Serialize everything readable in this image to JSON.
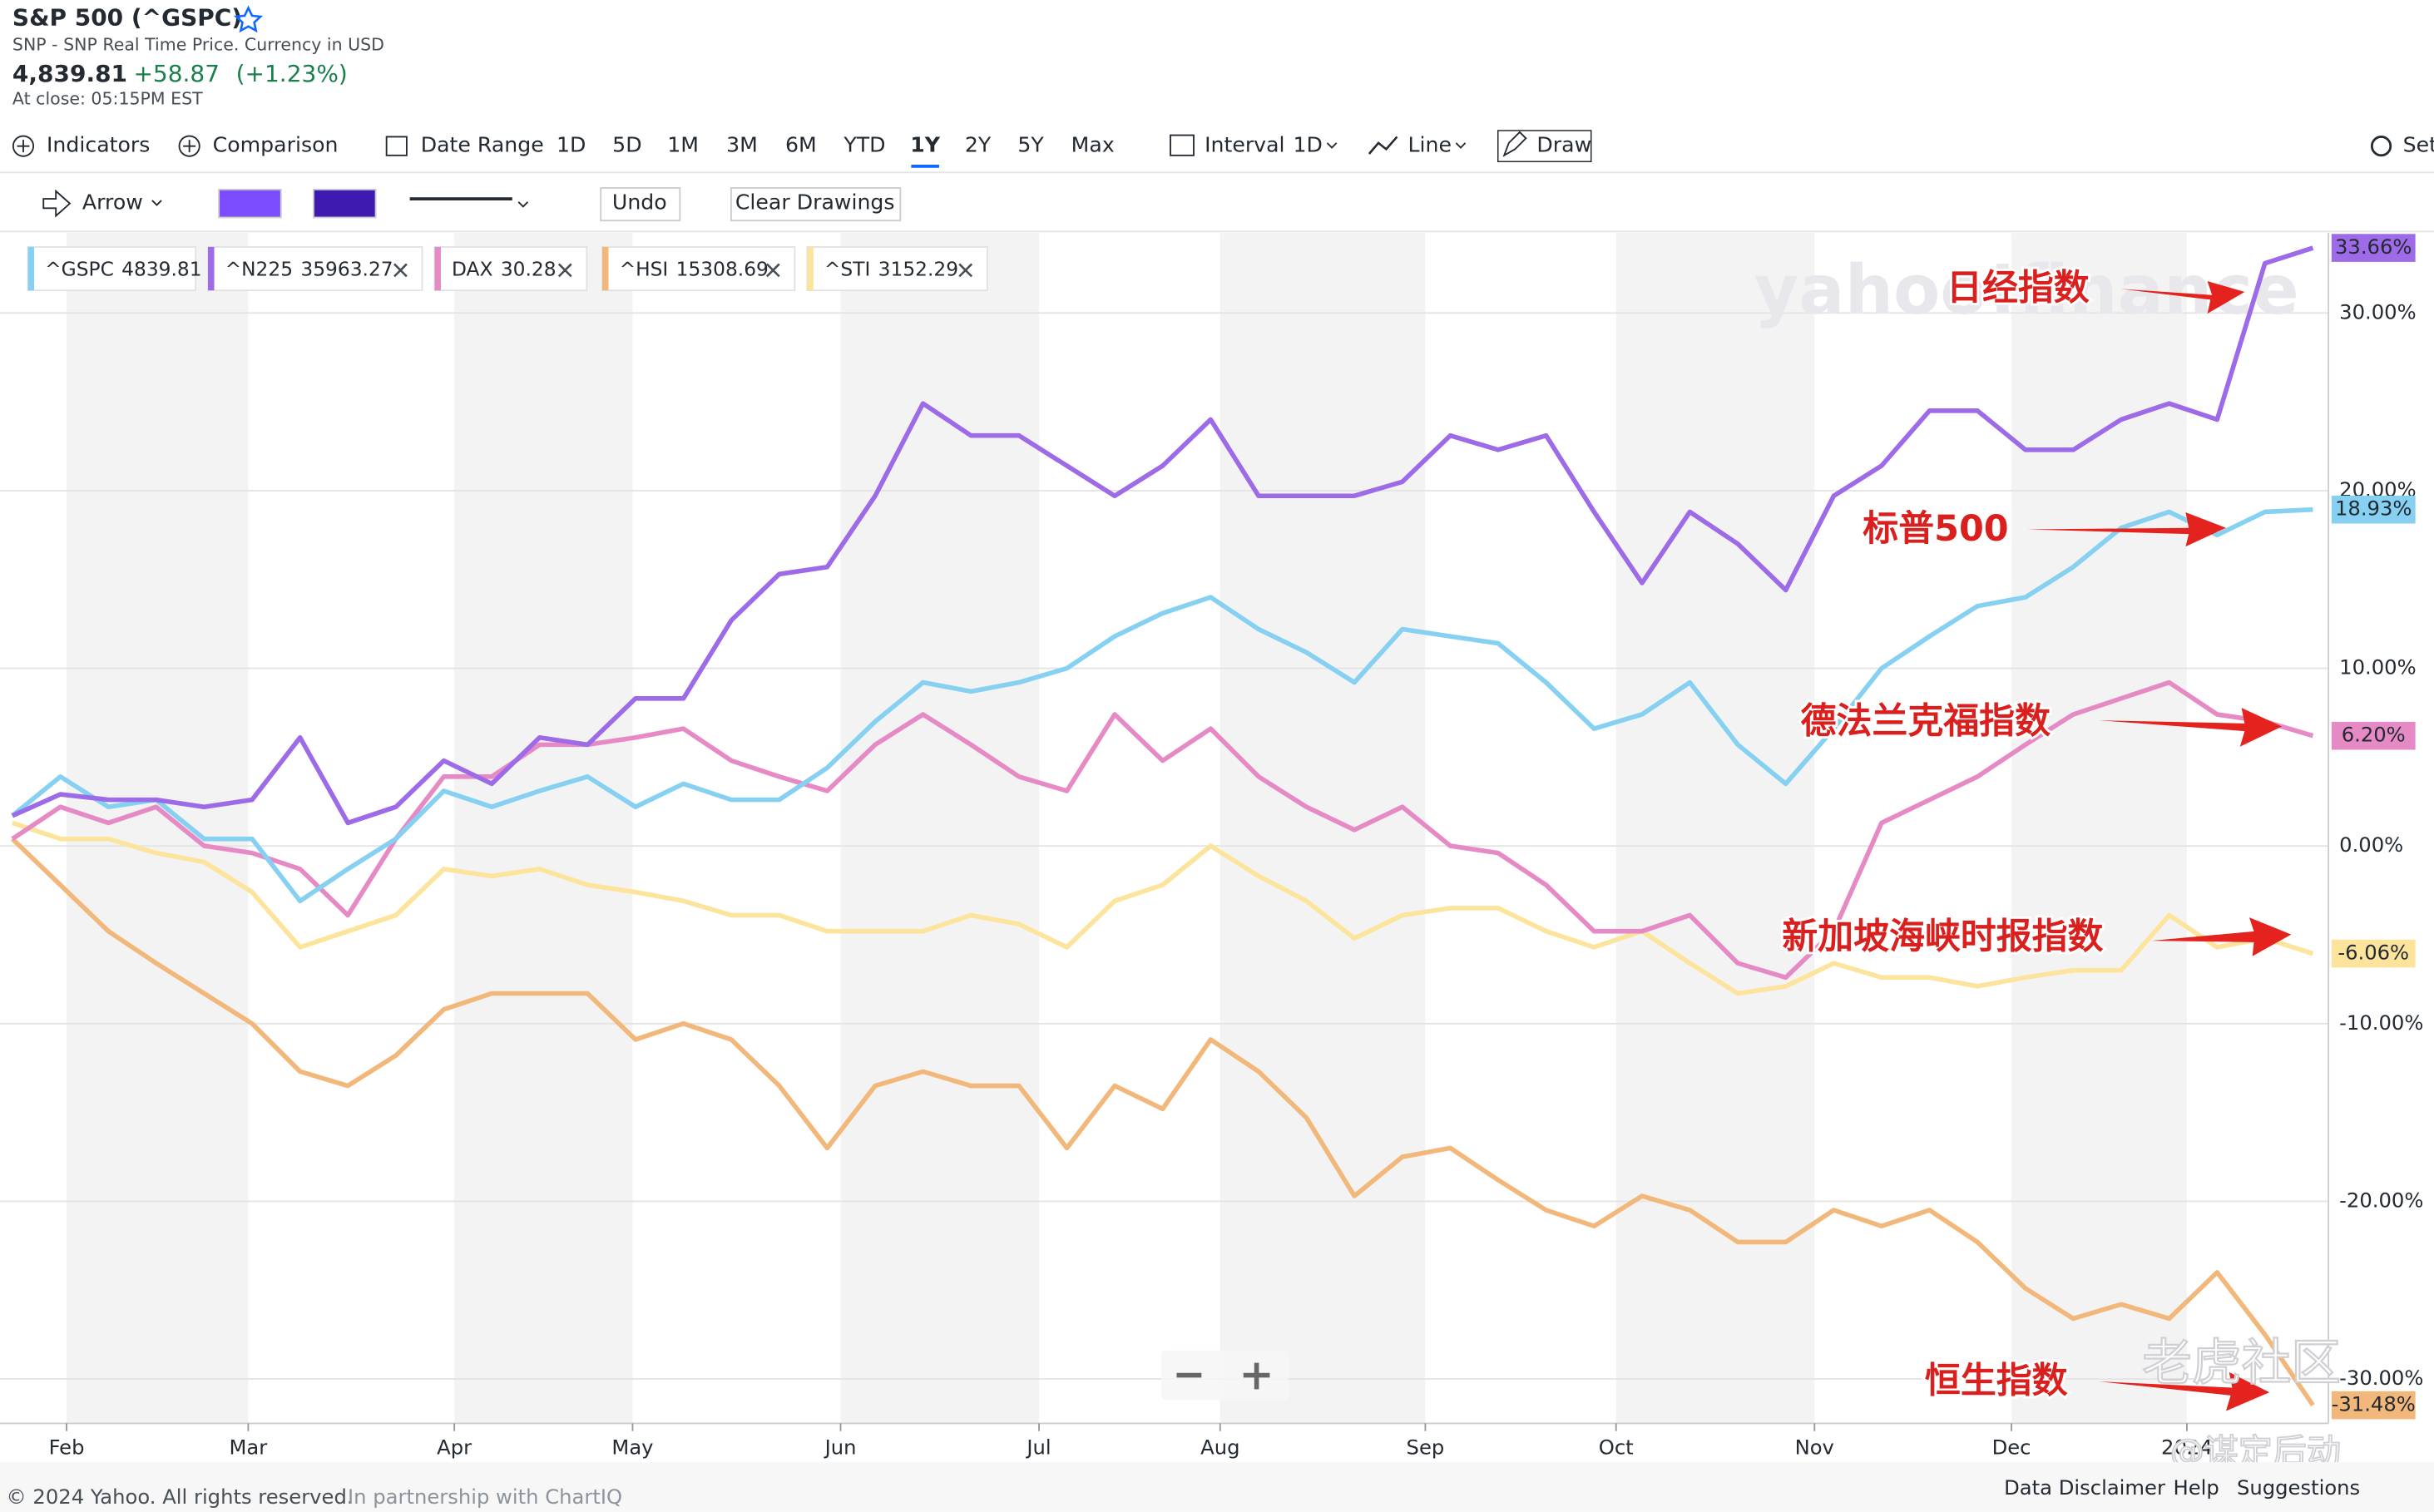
{
  "header": {
    "title": "S&P 500 (^GSPC)",
    "subtitle": "SNP - SNP Real Time Price. Currency in USD",
    "price": "4,839.81",
    "change": "+58.87",
    "change_pct": "(+1.23%)",
    "close_time": "At close: 05:15PM EST"
  },
  "toolbar": {
    "indicators": "Indicators",
    "comparison": "Comparison",
    "date_range": "Date Range",
    "ranges": [
      "1D",
      "5D",
      "1M",
      "3M",
      "6M",
      "YTD",
      "1Y",
      "2Y",
      "5Y",
      "Max"
    ],
    "interval": "Interval",
    "interval_value": "1D",
    "chart_type": "Line",
    "draw": "Draw",
    "settings": "Set"
  },
  "draw_toolbar": {
    "tool": "Arrow",
    "undo": "Undo",
    "clear": "Clear Drawings"
  },
  "watermark": "yahoo!finance",
  "chart_data": {
    "type": "line",
    "ylim": [
      -32.5,
      34.5
    ],
    "yticks": [
      {
        "value": 30,
        "label": "30.00%"
      },
      {
        "value": 20,
        "label": "20.00%"
      },
      {
        "value": 10,
        "label": "10.00%"
      },
      {
        "value": 0,
        "label": "0.00%"
      },
      {
        "value": -10,
        "label": "-10.00%"
      },
      {
        "value": -20,
        "label": "-20.00%"
      },
      {
        "value": -30,
        "label": "-30.00%"
      }
    ],
    "xticks": [
      {
        "value": 1.13,
        "label": "Feb"
      },
      {
        "value": 4.92,
        "label": "Mar"
      },
      {
        "value": 9.22,
        "label": "Apr"
      },
      {
        "value": 12.94,
        "label": "May"
      },
      {
        "value": 17.28,
        "label": "Jun"
      },
      {
        "value": 21.42,
        "label": "Jul"
      },
      {
        "value": 25.2,
        "label": "Aug"
      },
      {
        "value": 29.48,
        "label": "Sep"
      },
      {
        "value": 33.46,
        "label": "Oct"
      },
      {
        "value": 37.6,
        "label": "Nov"
      },
      {
        "value": 41.71,
        "label": "Dec"
      },
      {
        "value": 45.37,
        "label": "2024"
      }
    ],
    "grid": true,
    "series": [
      {
        "name": "^GSPC",
        "legend_value": "4839.81",
        "end_label": "18.93%",
        "color": "#86d0f2",
        "values": [
          1.7,
          3.9,
          2.2,
          2.6,
          0.4,
          0.4,
          -3.1,
          -1.3,
          0.4,
          3.1,
          2.2,
          3.1,
          3.9,
          2.2,
          3.5,
          2.6,
          2.6,
          4.4,
          7.0,
          9.2,
          8.7,
          9.2,
          10.0,
          11.8,
          13.1,
          14.0,
          12.2,
          10.9,
          9.2,
          12.2,
          11.8,
          11.4,
          9.2,
          6.6,
          7.4,
          9.2,
          5.7,
          3.5,
          6.6,
          10.0,
          11.8,
          13.5,
          14.0,
          15.7,
          17.9,
          18.8,
          17.5,
          18.8,
          18.93
        ]
      },
      {
        "name": "^N225",
        "legend_value": "35963.27",
        "end_label": "33.66%",
        "color": "#9d6ae8",
        "values": [
          1.7,
          2.9,
          2.6,
          2.6,
          2.2,
          2.6,
          6.1,
          1.3,
          2.2,
          4.8,
          3.5,
          6.1,
          5.7,
          8.3,
          8.3,
          12.7,
          15.3,
          15.7,
          19.7,
          24.9,
          23.1,
          23.1,
          21.4,
          19.7,
          21.4,
          24.0,
          19.7,
          19.7,
          19.7,
          20.5,
          23.1,
          22.3,
          23.1,
          18.8,
          14.8,
          18.8,
          17.0,
          14.4,
          19.7,
          21.4,
          24.5,
          24.5,
          22.3,
          22.3,
          24.0,
          24.9,
          24.0,
          32.8,
          33.66
        ]
      },
      {
        "name": "DAX",
        "legend_value": "30.28",
        "end_label": "6.20%",
        "color": "#e68ac6",
        "values": [
          0.4,
          2.2,
          1.3,
          2.2,
          0,
          -0.4,
          -1.3,
          -3.9,
          0.4,
          3.9,
          3.9,
          5.7,
          5.7,
          6.1,
          6.6,
          4.8,
          3.9,
          3.1,
          5.7,
          7.4,
          5.7,
          3.9,
          3.1,
          7.4,
          4.8,
          6.6,
          3.9,
          2.2,
          0.9,
          2.2,
          0,
          -0.4,
          -2.2,
          -4.8,
          -4.8,
          -3.9,
          -6.6,
          -7.4,
          -4.8,
          1.3,
          2.6,
          3.9,
          5.7,
          7.4,
          8.3,
          9.2,
          7.4,
          7.0,
          6.2
        ]
      },
      {
        "name": "^HSI",
        "legend_value": "15308.69",
        "end_label": "-31.48%",
        "color": "#f2b77a",
        "values": [
          0.4,
          -2.2,
          -4.8,
          -6.6,
          -8.3,
          -10.0,
          -12.7,
          -13.5,
          -11.8,
          -9.2,
          -8.3,
          -8.3,
          -8.3,
          -10.9,
          -10.0,
          -10.9,
          -13.5,
          -17.0,
          -13.5,
          -12.7,
          -13.5,
          -13.5,
          -17.0,
          -13.5,
          -14.8,
          -10.9,
          -12.7,
          -15.3,
          -19.7,
          -17.5,
          -17.0,
          -18.8,
          -20.5,
          -21.4,
          -19.7,
          -20.5,
          -22.3,
          -22.3,
          -20.5,
          -21.4,
          -20.5,
          -22.3,
          -24.9,
          -26.6,
          -25.8,
          -26.6,
          -24.0,
          -27.5,
          -31.48
        ]
      },
      {
        "name": "^STI",
        "legend_value": "3152.29",
        "end_label": "-6.06%",
        "color": "#fce49c",
        "values": [
          1.3,
          0.4,
          0.4,
          -0.4,
          -0.9,
          -2.6,
          -5.7,
          -4.8,
          -3.9,
          -1.3,
          -1.7,
          -1.3,
          -2.2,
          -2.6,
          -3.1,
          -3.9,
          -3.9,
          -4.8,
          -4.8,
          -4.8,
          -3.9,
          -4.4,
          -5.7,
          -3.1,
          -2.2,
          0,
          -1.7,
          -3.1,
          -5.2,
          -3.9,
          -3.5,
          -3.5,
          -4.8,
          -5.7,
          -4.8,
          -6.6,
          -8.3,
          -7.9,
          -6.6,
          -7.4,
          -7.4,
          -7.9,
          -7.4,
          -7.0,
          -7.0,
          -3.9,
          -5.7,
          -5.2,
          -6.06
        ]
      }
    ],
    "annotations": [
      "日经指数",
      "标普500",
      "德法兰克福指数",
      "新加坡海峡时报指数",
      "恒生指数"
    ]
  },
  "footer": {
    "copyright": "© 2024 Yahoo. All rights reserved.",
    "partner": "In partnership with ChartIQ",
    "links": [
      "Data Disclaimer",
      "Help",
      "Suggestions"
    ]
  },
  "overlay": {
    "community": "老虎社区",
    "author": "@谋定后动"
  }
}
